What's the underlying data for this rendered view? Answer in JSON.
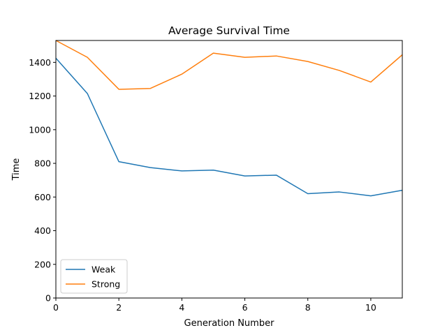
{
  "chart_data": {
    "type": "line",
    "title": "Average Survival Time",
    "xlabel": "Generation Number",
    "ylabel": "Time",
    "xlim": [
      0,
      11
    ],
    "ylim": [
      0,
      1530
    ],
    "xticks": [
      0,
      2,
      4,
      6,
      8,
      10
    ],
    "yticks": [
      0,
      200,
      400,
      600,
      800,
      1000,
      1200,
      1400
    ],
    "grid": false,
    "legend_position": "lower-left",
    "x": [
      0,
      1,
      2,
      3,
      4,
      5,
      6,
      7,
      8,
      9,
      10,
      11
    ],
    "series": [
      {
        "name": "Weak",
        "color": "#1f77b4",
        "values": [
          1425,
          1215,
          810,
          775,
          755,
          760,
          725,
          730,
          620,
          630,
          607,
          640
        ]
      },
      {
        "name": "Strong",
        "color": "#ff7f0e",
        "values": [
          1530,
          1430,
          1240,
          1245,
          1330,
          1455,
          1430,
          1438,
          1405,
          1352,
          1283,
          1445
        ]
      }
    ]
  }
}
